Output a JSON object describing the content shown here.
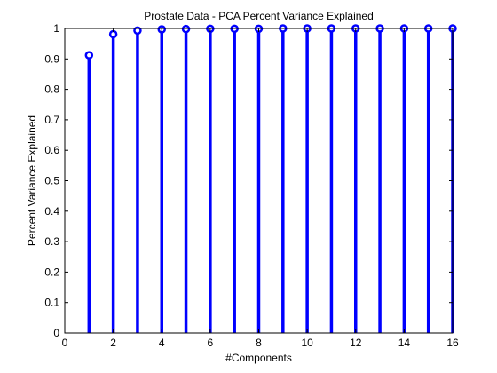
{
  "chart_data": {
    "type": "stem",
    "title": "Prostate Data - PCA Percent Variance Explained",
    "xlabel": "#Components",
    "ylabel": "Percent Variance Explained",
    "xlim": [
      0,
      16
    ],
    "ylim": [
      0,
      1
    ],
    "xticks": [
      0,
      2,
      4,
      6,
      8,
      10,
      12,
      14,
      16
    ],
    "yticks": [
      0,
      0.1,
      0.2,
      0.3,
      0.4,
      0.5,
      0.6,
      0.7,
      0.8,
      0.9,
      1
    ],
    "grid": false,
    "series": [
      {
        "x": [
          1,
          2,
          3,
          4,
          5,
          6,
          7,
          8,
          9,
          10,
          11,
          12,
          13,
          14,
          15,
          16
        ],
        "y": [
          0.912,
          0.981,
          0.993,
          0.997,
          0.998,
          0.999,
          0.999,
          0.999,
          1.0,
          1.0,
          1.0,
          1.0,
          1.0,
          1.0,
          1.0,
          1.0
        ],
        "color": "#0000ff"
      }
    ]
  }
}
